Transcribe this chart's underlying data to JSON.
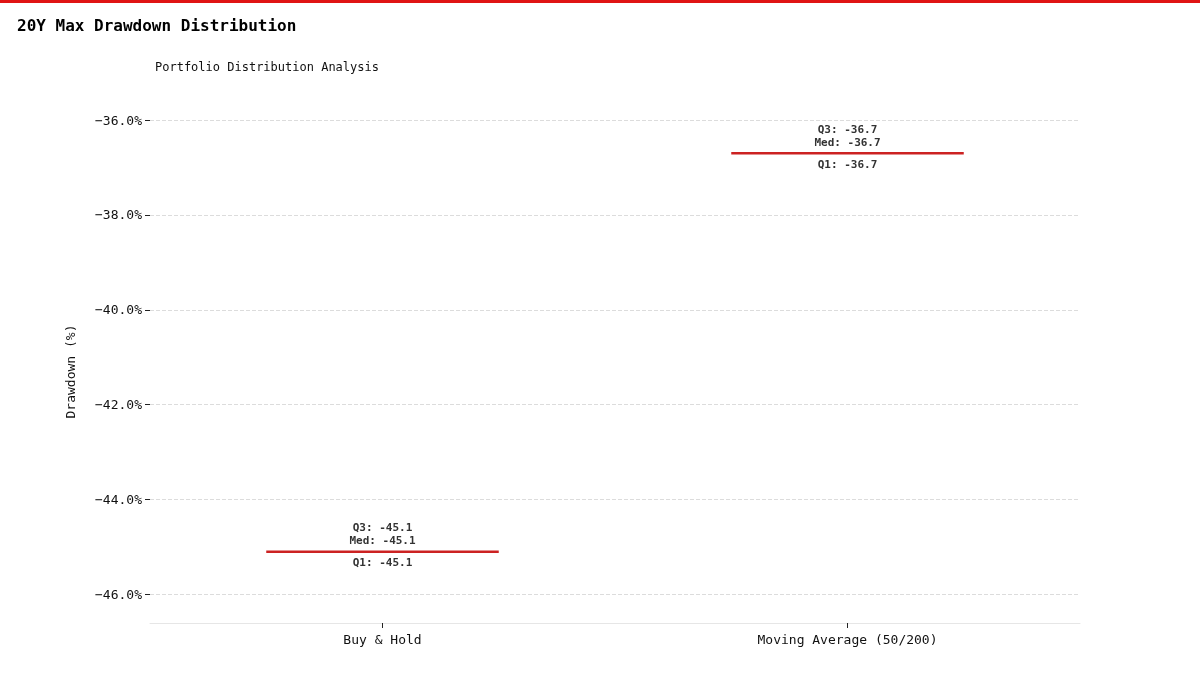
{
  "chart_data": {
    "type": "box",
    "title": "20Y Max Drawdown Distribution",
    "subtitle": "Portfolio Distribution Analysis",
    "ylabel": "Drawdown (%)",
    "categories": [
      "Buy & Hold",
      "Moving Average (50/200)"
    ],
    "color": "#cc2222",
    "boxes": [
      {
        "low": -45.1,
        "q1": -45.1,
        "median": -45.1,
        "q3": -45.1,
        "high": -45.1
      },
      {
        "low": -36.7,
        "q1": -36.7,
        "median": -36.7,
        "q3": -36.7,
        "high": -36.7
      }
    ],
    "ylim": [
      -46.6,
      -36
    ],
    "yticks": [
      {
        "value": -46,
        "label": "−46.0%"
      },
      {
        "value": -44,
        "label": "−44.0%"
      },
      {
        "value": -42,
        "label": "−42.0%"
      },
      {
        "value": -40,
        "label": "−40.0%"
      },
      {
        "value": -38,
        "label": "−38.0%"
      },
      {
        "value": -36,
        "label": "−36.0%"
      }
    ],
    "grid": "y",
    "annotations": [
      {
        "text": "Q3: -45.1",
        "x": "Buy & Hold",
        "y": -45.1
      },
      {
        "text": "Med: -45.1",
        "x": "Buy & Hold",
        "y": -45.1
      },
      {
        "text": "Q1: -45.1",
        "x": "Buy & Hold",
        "y": -45.1
      },
      {
        "text": "Q3: -36.7",
        "x": "Moving Average (50/200)",
        "y": -36.7
      },
      {
        "text": "Med: -36.7",
        "x": "Moving Average (50/200)",
        "y": -36.7
      },
      {
        "text": "Q1: -36.7",
        "x": "Moving Average (50/200)",
        "y": -36.7
      }
    ]
  }
}
